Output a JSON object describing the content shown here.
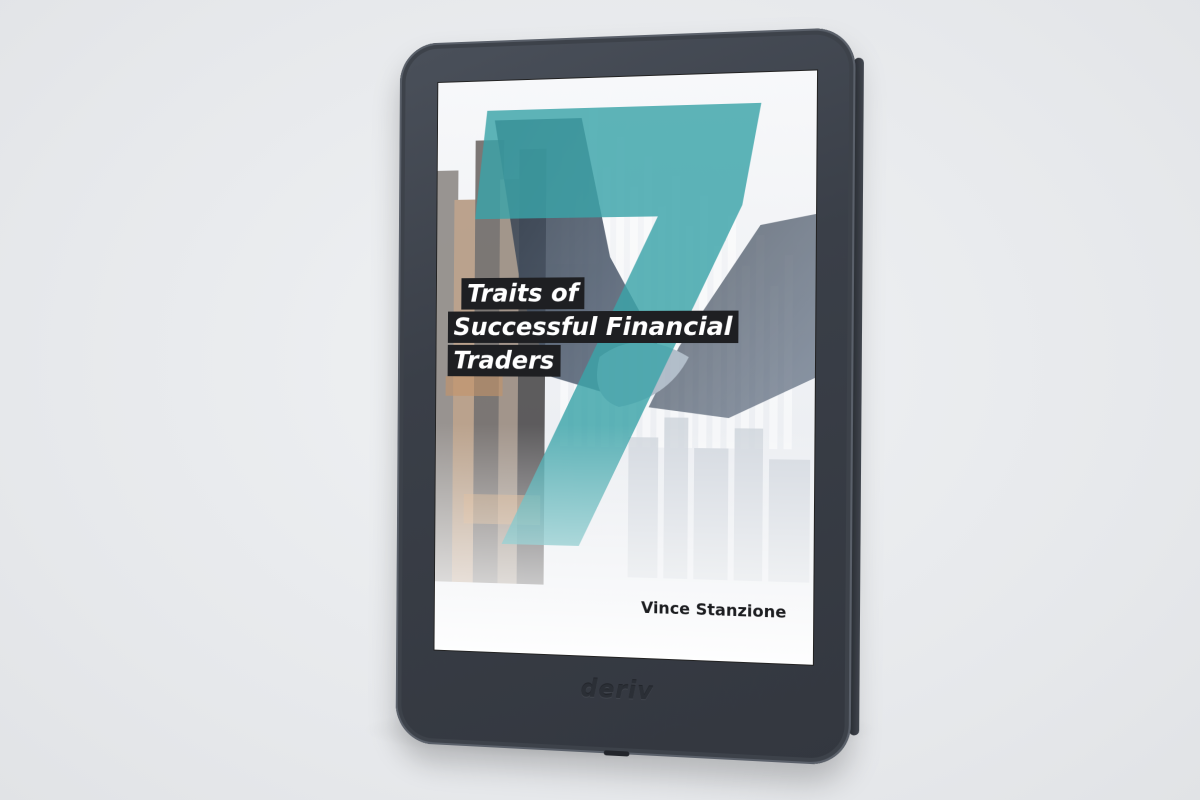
{
  "book": {
    "numeral": "7",
    "title_lines": [
      "Traits of",
      "Successful Financial",
      "Traders"
    ],
    "author": "Vince Stanzione"
  },
  "device": {
    "brand": "deriv"
  },
  "colors": {
    "accent_teal": "#3aa3a8",
    "bezel": "#3a3f48",
    "background": "#e9ebee",
    "title_bar": "#1e1f22"
  }
}
